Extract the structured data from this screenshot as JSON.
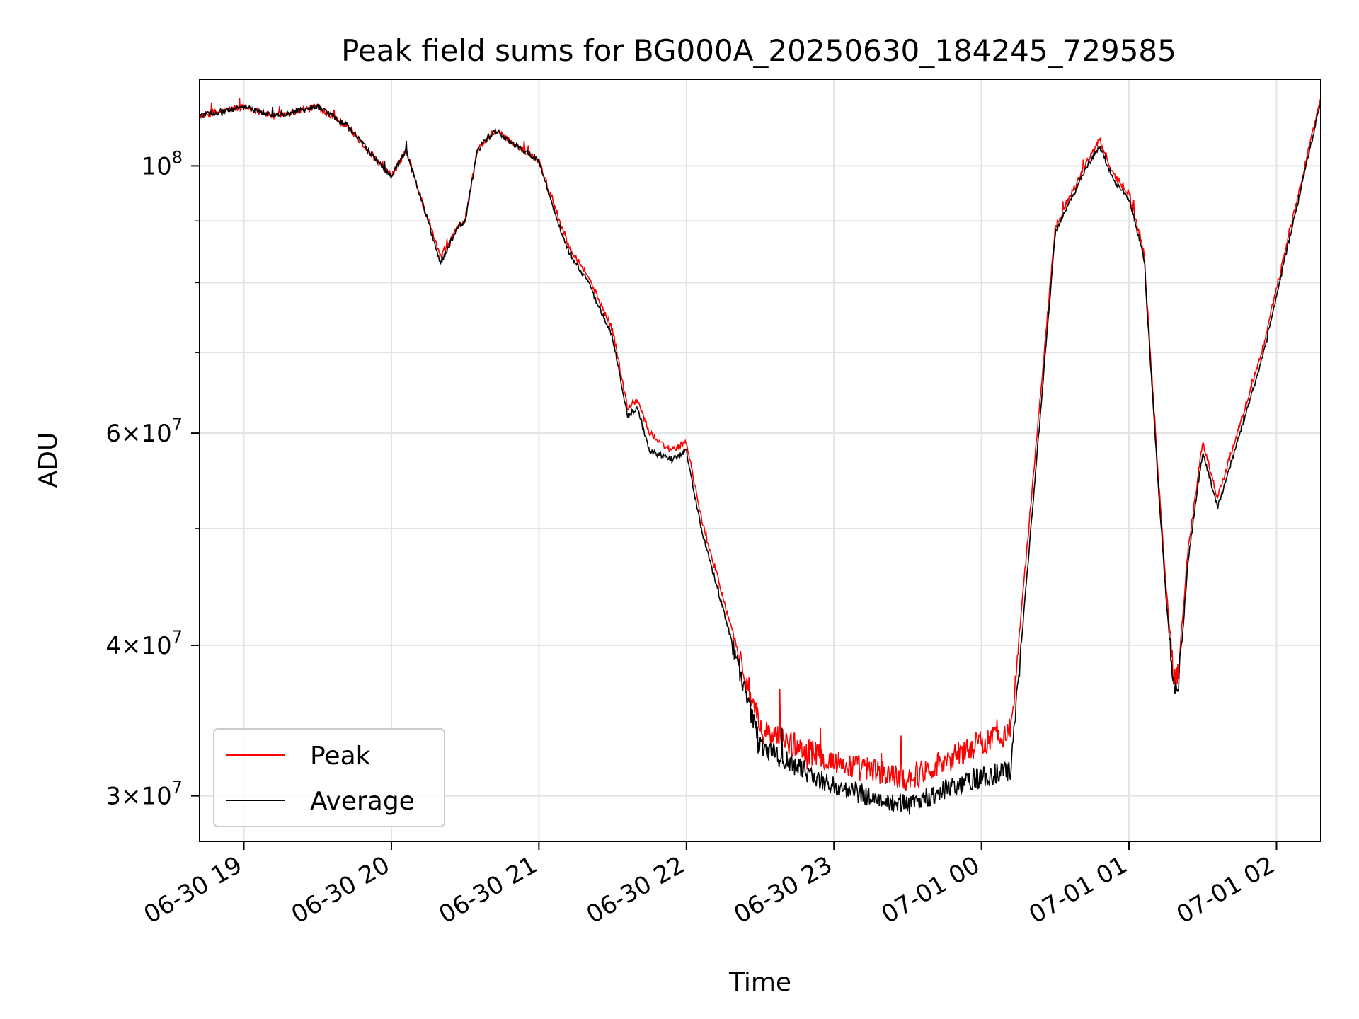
{
  "chart_data": {
    "type": "line",
    "title": "Peak field sums for BG000A_20250630_184245_729585",
    "xlabel": "Time",
    "ylabel": "ADU",
    "yscale": "log",
    "xlim": [
      "06-30 18:42",
      "07-01 02:18"
    ],
    "ylim": [
      27500000,
      118000000
    ],
    "grid": true,
    "legend_position": "lower-left",
    "x_ticks": [
      "06-30 19",
      "06-30 20",
      "06-30 21",
      "06-30 22",
      "06-30 23",
      "07-01 00",
      "07-01 01",
      "07-01 02"
    ],
    "x_tick_hours": [
      19,
      20,
      21,
      22,
      23,
      24,
      25,
      26
    ],
    "y_major_ticks": [
      {
        "value": 30000000,
        "mant": "3",
        "exp": "7"
      },
      {
        "value": 40000000,
        "mant": "4",
        "exp": "7"
      },
      {
        "value": 60000000,
        "mant": "6",
        "exp": "7"
      },
      {
        "value": 100000000,
        "mant": "",
        "exp": "8"
      }
    ],
    "y_minor_ticks": [
      50000000,
      70000000,
      80000000,
      90000000
    ],
    "series": [
      {
        "name": "Peak",
        "color": "#ff0000",
        "noise": 0.022,
        "x": [
          "06-30 18:42",
          "06-30 19:00",
          "06-30 19:06",
          "06-30 19:12",
          "06-30 19:30",
          "06-30 19:36",
          "06-30 19:42",
          "06-30 19:54",
          "06-30 20:00",
          "06-30 20:06",
          "06-30 20:12",
          "06-30 20:20",
          "06-30 20:27",
          "06-30 20:30",
          "06-30 20:35",
          "06-30 20:42",
          "06-30 21:00",
          "06-30 21:06",
          "06-30 21:12",
          "06-30 21:20",
          "06-30 21:30",
          "06-30 21:36",
          "06-30 21:40",
          "06-30 21:45",
          "06-30 21:54",
          "06-30 22:00",
          "06-30 22:06",
          "06-30 22:12",
          "06-30 22:30",
          "06-30 23:00",
          "06-30 23:30",
          "06-30 23:57",
          "07-01 00:12",
          "07-01 00:30",
          "07-01 00:42",
          "07-01 00:48",
          "07-01 00:54",
          "07-01 01:00",
          "07-01 01:06",
          "07-01 01:12",
          "07-01 01:15",
          "07-01 01:18",
          "07-01 01:20",
          "07-01 01:24",
          "07-01 01:30",
          "07-01 01:36",
          "07-01 01:54",
          "07-01 02:18"
        ],
        "y": [
          110000000,
          112000000,
          111000000,
          110000000,
          112000000,
          110000000,
          108000000,
          101000000,
          98000000,
          103000000,
          94000000,
          84000000,
          89000000,
          90000000,
          103000000,
          107000000,
          101000000,
          93000000,
          86000000,
          81000000,
          73000000,
          63000000,
          64000000,
          60000000,
          58000000,
          59000000,
          51000000,
          46000000,
          34000000,
          32000000,
          31000000,
          33000000,
          34000000,
          89000000,
          100000000,
          105000000,
          98000000,
          95000000,
          85000000,
          55000000,
          45000000,
          38000000,
          38000000,
          48000000,
          59000000,
          53000000,
          70000000,
          114000000
        ]
      },
      {
        "name": "Average",
        "color": "#000000",
        "noise": 0.018,
        "x": [
          "06-30 18:42",
          "06-30 19:00",
          "06-30 19:06",
          "06-30 19:12",
          "06-30 19:30",
          "06-30 19:36",
          "06-30 19:42",
          "06-30 19:54",
          "06-30 20:00",
          "06-30 20:06",
          "06-30 20:12",
          "06-30 20:20",
          "06-30 20:27",
          "06-30 20:30",
          "06-30 20:35",
          "06-30 20:42",
          "06-30 21:00",
          "06-30 21:06",
          "06-30 21:12",
          "06-30 21:20",
          "06-30 21:30",
          "06-30 21:36",
          "06-30 21:40",
          "06-30 21:45",
          "06-30 21:54",
          "06-30 22:00",
          "06-30 22:06",
          "06-30 22:12",
          "06-30 22:30",
          "06-30 23:00",
          "06-30 23:30",
          "06-30 23:57",
          "07-01 00:12",
          "07-01 00:30",
          "07-01 00:42",
          "07-01 00:48",
          "07-01 00:54",
          "07-01 01:00",
          "07-01 01:06",
          "07-01 01:12",
          "07-01 01:15",
          "07-01 01:18",
          "07-01 01:20",
          "07-01 01:24",
          "07-01 01:30",
          "07-01 01:36",
          "07-01 01:54",
          "07-01 02:18"
        ],
        "y": [
          110000000,
          112000000,
          111000000,
          110000000,
          112000000,
          110000000,
          108000000,
          101000000,
          98000000,
          103000000,
          94000000,
          83000000,
          89000000,
          90000000,
          103000000,
          107000000,
          101000000,
          92000000,
          85000000,
          80000000,
          72000000,
          62000000,
          63000000,
          58000000,
          57000000,
          58000000,
          50000000,
          45000000,
          33000000,
          30500000,
          29500000,
          31000000,
          31500000,
          88000000,
          99000000,
          104000000,
          97000000,
          94000000,
          84000000,
          54000000,
          44000000,
          37000000,
          36500000,
          47000000,
          58000000,
          52000000,
          69000000,
          113000000
        ]
      }
    ]
  }
}
